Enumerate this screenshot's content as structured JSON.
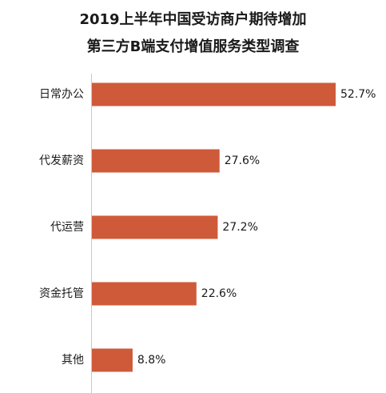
{
  "chart_data": {
    "type": "bar",
    "orientation": "horizontal",
    "title": "2019上半年中国受访商户期待增加",
    "subtitle": "第三方B端支付增值服务类型调查",
    "categories": [
      "日常办公",
      "代发薪资",
      "代运营",
      "资金托管",
      "其他"
    ],
    "values": [
      52.7,
      27.6,
      27.2,
      22.6,
      8.8
    ],
    "value_labels": [
      "52.7%",
      "27.6%",
      "27.2%",
      "22.6%",
      "8.8%"
    ],
    "unit": "%",
    "xlim": [
      0,
      52.7
    ],
    "bar_color": "#cf5a3a",
    "axis_color": "#c8c8c8",
    "grid": false,
    "legend": "none"
  }
}
